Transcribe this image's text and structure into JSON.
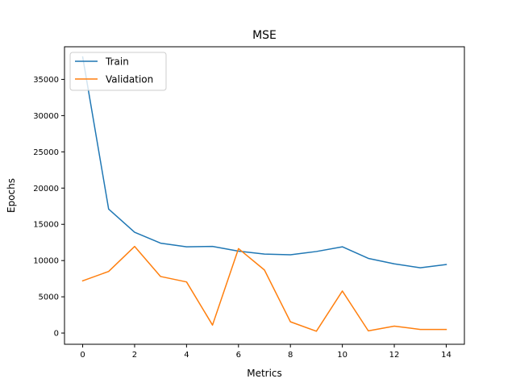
{
  "chart_data": {
    "type": "line",
    "title": "MSE",
    "xlabel": "Metrics",
    "ylabel": "Epochs",
    "xlim": [
      -0.7,
      14.7
    ],
    "ylim": [
      -1550,
      39500
    ],
    "xticks": [
      0,
      2,
      4,
      6,
      8,
      10,
      12,
      14
    ],
    "yticks": [
      0,
      5000,
      10000,
      15000,
      20000,
      25000,
      30000,
      35000
    ],
    "x": [
      0,
      1,
      2,
      3,
      4,
      5,
      6,
      7,
      8,
      9,
      10,
      11,
      12,
      13,
      14
    ],
    "grid": false,
    "legend_position": "upper-left",
    "series": [
      {
        "name": "Train",
        "color": "#1f77b4",
        "values": [
          38100,
          17100,
          13900,
          12400,
          11900,
          11950,
          11300,
          10900,
          10800,
          11250,
          11900,
          10300,
          9550,
          9000,
          9450
        ]
      },
      {
        "name": "Validation",
        "color": "#ff7f0e",
        "values": [
          7200,
          8500,
          11950,
          7800,
          7050,
          1100,
          11650,
          8700,
          1550,
          250,
          5800,
          300,
          950,
          500,
          500
        ]
      }
    ]
  }
}
